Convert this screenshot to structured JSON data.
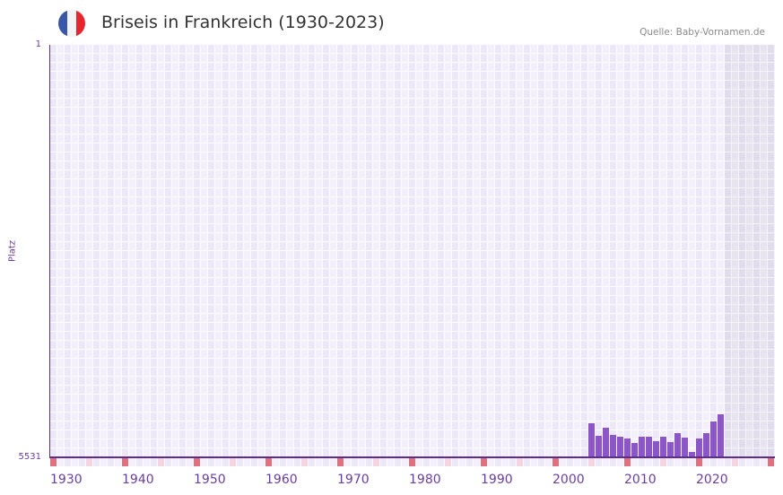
{
  "header": {
    "title": "Briseis in Frankreich (1930-2023)",
    "source": "Quelle: Baby-Vornamen.de",
    "flag_icon": "france-flag-icon",
    "flag_colors": {
      "blue": "#3a56a6",
      "white": "#f3f3f6",
      "red": "#e4262f"
    }
  },
  "colors": {
    "bar": "#8c55c8",
    "axis": "#5b2d8e",
    "label": "#6a3d9f",
    "decade_marker": "#e0707e",
    "half_decade_marker": "#f4d6e0"
  },
  "axis": {
    "y_title": "Platz",
    "y_top_label": "1",
    "y_bottom_label": "5531",
    "x_labels": [
      "1930",
      "1940",
      "1950",
      "1960",
      "1970",
      "1980",
      "1990",
      "2000",
      "2010",
      "2020"
    ]
  },
  "chart_data": {
    "type": "bar",
    "title": "Briseis in Frankreich (1930-2023)",
    "xlabel": "",
    "ylabel": "Platz",
    "ylim": [
      5531,
      1
    ],
    "y_inverted": true,
    "x_range": [
      1930,
      2030
    ],
    "x_ticks": [
      1930,
      1940,
      1950,
      1960,
      1970,
      1980,
      1990,
      2000,
      2010,
      2020
    ],
    "shaded_future_range": [
      2024,
      2030
    ],
    "grid": true,
    "legend": null,
    "categories": [
      2005,
      2006,
      2007,
      2008,
      2009,
      2010,
      2011,
      2012,
      2013,
      2014,
      2015,
      2016,
      2017,
      2018,
      2019,
      2020,
      2021,
      2022,
      2023
    ],
    "values": [
      5074,
      5243,
      5134,
      5231,
      5255,
      5279,
      5339,
      5255,
      5255,
      5315,
      5255,
      5327,
      5206,
      5267,
      5459,
      5279,
      5206,
      5050,
      4954
    ]
  }
}
